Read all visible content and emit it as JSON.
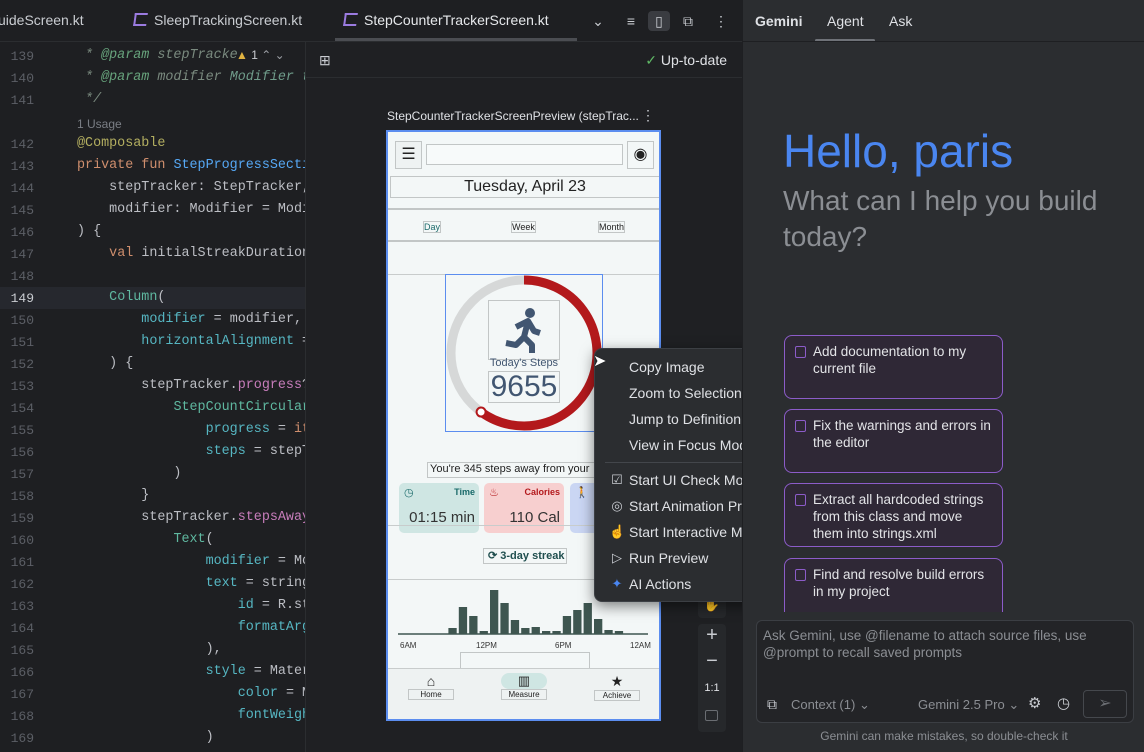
{
  "tabs": [
    {
      "label": "uideScreen.kt"
    },
    {
      "label": "SleepTrackingScreen.kt"
    },
    {
      "label": "StepCounterTrackerScreen.kt",
      "active": true
    }
  ],
  "editor": {
    "warning_count": "1",
    "usage_hint": "1 Usage",
    "current_line": 149,
    "lines": [
      {
        "n": "139",
        "segs": [
          [
            " * ",
            "cm"
          ],
          [
            "@param",
            "tag"
          ],
          [
            " stepTracke",
            "cm"
          ]
        ]
      },
      {
        "n": "140",
        "segs": [
          [
            " * ",
            "cm"
          ],
          [
            "@param",
            "tag"
          ],
          [
            " modifier ",
            "cm"
          ],
          [
            "Modifier t",
            "ref"
          ]
        ]
      },
      {
        "n": "141",
        "segs": [
          [
            " */",
            "cm"
          ]
        ]
      },
      {
        "n": "142",
        "segs": [
          [
            "@Composable",
            "an"
          ]
        ]
      },
      {
        "n": "143",
        "segs": [
          [
            "private fun ",
            "kw"
          ],
          [
            "StepProgressSecti",
            "fn"
          ]
        ]
      },
      {
        "n": "144",
        "segs": [
          [
            "    stepTracker: StepTracker,",
            ""
          ]
        ]
      },
      {
        "n": "145",
        "segs": [
          [
            "    modifier: Modifier = Modi",
            ""
          ]
        ]
      },
      {
        "n": "146",
        "segs": [
          [
            ") {",
            ""
          ]
        ]
      },
      {
        "n": "147",
        "segs": [
          [
            "    ",
            ""
          ],
          [
            "val ",
            "kw"
          ],
          [
            "initialStreakDuration",
            ""
          ]
        ]
      },
      {
        "n": "148",
        "segs": []
      },
      {
        "n": "149",
        "segs": [
          [
            "    ",
            ""
          ],
          [
            "Column",
            "call"
          ],
          [
            "(",
            ""
          ]
        ]
      },
      {
        "n": "150",
        "segs": [
          [
            "        ",
            ""
          ],
          [
            "modifier",
            "pr"
          ],
          [
            " = modifier,",
            ""
          ]
        ]
      },
      {
        "n": "151",
        "segs": [
          [
            "        ",
            ""
          ],
          [
            "horizontalAlignment",
            "pr"
          ],
          [
            " =",
            ""
          ]
        ]
      },
      {
        "n": "152",
        "segs": [
          [
            "    ) {",
            ""
          ]
        ]
      },
      {
        "n": "153",
        "segs": [
          [
            "        stepTracker.",
            ""
          ],
          [
            "progress",
            "pp"
          ],
          [
            "?",
            ""
          ]
        ]
      },
      {
        "n": "154",
        "segs": [
          [
            "            ",
            ""
          ],
          [
            "StepCountCircular",
            "call"
          ]
        ]
      },
      {
        "n": "155",
        "segs": [
          [
            "                ",
            ""
          ],
          [
            "progress",
            "pr"
          ],
          [
            " = ",
            ""
          ],
          [
            "it",
            "kw"
          ]
        ]
      },
      {
        "n": "156",
        "segs": [
          [
            "                ",
            ""
          ],
          [
            "steps",
            "pr"
          ],
          [
            " = stepTr",
            ""
          ]
        ]
      },
      {
        "n": "157",
        "segs": [
          [
            "            )",
            ""
          ]
        ]
      },
      {
        "n": "158",
        "segs": [
          [
            "        }",
            ""
          ]
        ]
      },
      {
        "n": "159",
        "segs": [
          [
            "        stepTracker.",
            ""
          ],
          [
            "stepsAway",
            "pp"
          ]
        ]
      },
      {
        "n": "160",
        "segs": [
          [
            "            ",
            ""
          ],
          [
            "Text",
            "call"
          ],
          [
            "(",
            ""
          ]
        ]
      },
      {
        "n": "161",
        "segs": [
          [
            "                ",
            ""
          ],
          [
            "modifier",
            "pr"
          ],
          [
            " = Mo",
            ""
          ]
        ]
      },
      {
        "n": "162",
        "segs": [
          [
            "                ",
            ""
          ],
          [
            "text",
            "pr"
          ],
          [
            " = string",
            ""
          ]
        ]
      },
      {
        "n": "163",
        "segs": [
          [
            "                    ",
            ""
          ],
          [
            "id",
            "pr"
          ],
          [
            " = R.st",
            ""
          ]
        ]
      },
      {
        "n": "164",
        "segs": [
          [
            "                    ",
            ""
          ],
          [
            "formatArgs",
            "pr"
          ]
        ]
      },
      {
        "n": "165",
        "segs": [
          [
            "                ),",
            ""
          ]
        ]
      },
      {
        "n": "166",
        "segs": [
          [
            "                ",
            ""
          ],
          [
            "style",
            "pr"
          ],
          [
            " = Mater",
            ""
          ]
        ]
      },
      {
        "n": "167",
        "segs": [
          [
            "                    ",
            ""
          ],
          [
            "color",
            "pr"
          ],
          [
            " = Ma",
            ""
          ]
        ]
      },
      {
        "n": "168",
        "segs": [
          [
            "                    ",
            ""
          ],
          [
            "fontWeight",
            "pr"
          ]
        ]
      },
      {
        "n": "169",
        "segs": [
          [
            "                )",
            ""
          ]
        ]
      },
      {
        "n": "170",
        "segs": [
          [
            "            )",
            ""
          ]
        ]
      }
    ]
  },
  "preview": {
    "status": "Up-to-date",
    "title": "StepCounterTrackerScreenPreview (stepTrac...",
    "date": "Tuesday, April 23",
    "periods": [
      "Day",
      "Week",
      "Month"
    ],
    "ring_progress": 0.6,
    "steps_label": "Today's Steps",
    "steps": "9655",
    "away_text": "You're 345 steps away from your",
    "stats": [
      {
        "label": "Time",
        "value": "01:15 min",
        "color": "#cfe6e3"
      },
      {
        "label": "Calories",
        "value": "110 Cal",
        "color": "#f7cfcf"
      },
      {
        "label": "",
        "value": "",
        "color": "#cad6f3"
      }
    ],
    "streak": "3-day streak",
    "chart": {
      "type": "bar",
      "values": [
        0,
        6,
        27,
        18,
        3,
        44,
        31,
        14,
        6,
        7,
        3,
        3,
        18,
        24,
        31,
        15,
        4,
        3
      ],
      "x_ticks": [
        "6AM",
        "12PM",
        "6PM",
        "12AM"
      ]
    },
    "nav": [
      "Home",
      "Measure",
      "Achieve"
    ],
    "zoom_reset": "1:1"
  },
  "context_menu": {
    "items": [
      {
        "label": "Copy Image",
        "icon": ""
      },
      {
        "label": "Zoom to Selection",
        "icon": ""
      },
      {
        "label": "Jump to Definition",
        "icon": ""
      },
      {
        "label": "View in Focus Mode",
        "icon": ""
      },
      {
        "label": "Start UI Check Mode",
        "icon": "ui-check-icon"
      },
      {
        "label": "Start Animation Preview",
        "icon": "animation-icon"
      },
      {
        "label": "Start Interactive Mode",
        "icon": "touch-icon"
      },
      {
        "label": "Run Preview",
        "icon": "run-device-icon"
      },
      {
        "label": "AI Actions",
        "icon": "sparkle-icon",
        "submenu": true
      }
    ]
  },
  "gemini": {
    "tabs": [
      "Gemini",
      "Agent",
      "Ask"
    ],
    "active_tab": "Agent",
    "greeting": "Hello, paris",
    "subtitle": "What can I help you build today?",
    "suggestions": [
      "Add documentation to my current file",
      "Fix the warnings and errors in the editor",
      "Extract all hardcoded strings from this class and move them into strings.xml",
      "Find and resolve build errors in my project"
    ],
    "input_placeholder": "Ask Gemini, use @filename to attach source files, use @prompt to recall saved prompts",
    "context": "Context (1)",
    "model": "Gemini 2.5 Pro",
    "disclaimer": "Gemini can make mistakes, so double-check it",
    "accent": "#4a86f0"
  }
}
